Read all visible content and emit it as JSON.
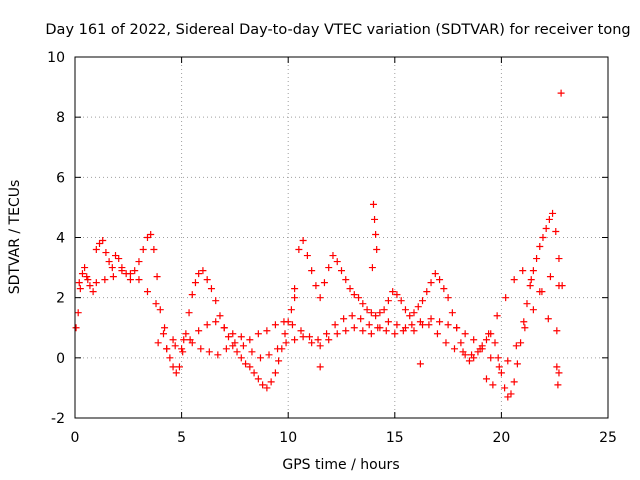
{
  "chart_data": {
    "type": "scatter",
    "title": "Day 161 of 2022, Sidereal Day-to-day VTEC variation (SDTVAR) for receiver tong",
    "xlabel": "GPS time / hours",
    "ylabel": "SDTVAR / TECUs",
    "xlim": [
      0,
      25
    ],
    "ylim": [
      -2,
      10
    ],
    "xticks": [
      "0",
      "5",
      "10",
      "15",
      "20",
      "25"
    ],
    "yticks": [
      "-2",
      "0",
      "2",
      "4",
      "6",
      "8",
      "10"
    ],
    "grid": true,
    "marker": "+",
    "series": [
      {
        "name": "SDTVAR",
        "color": "#ff0000",
        "x": [
          0.05,
          0.15,
          0.25,
          0.35,
          0.45,
          0.55,
          0.7,
          0.85,
          1.0,
          1.15,
          1.3,
          1.45,
          1.6,
          1.75,
          1.9,
          2.05,
          2.2,
          2.4,
          2.6,
          2.8,
          3.0,
          3.2,
          3.4,
          3.55,
          3.7,
          3.85,
          4.0,
          4.15,
          4.3,
          4.45,
          4.6,
          4.75,
          4.9,
          5.05,
          5.2,
          5.35,
          5.5,
          5.65,
          5.8,
          6.0,
          6.2,
          6.4,
          6.6,
          6.8,
          7.0,
          7.2,
          7.4,
          7.6,
          7.8,
          8.0,
          8.2,
          8.4,
          8.6,
          8.8,
          9.0,
          9.2,
          9.4,
          9.55,
          9.7,
          9.85,
          10.0,
          10.15,
          10.3,
          10.5,
          10.7,
          10.9,
          11.1,
          11.3,
          11.5,
          11.7,
          11.9,
          12.1,
          12.3,
          12.5,
          12.7,
          12.9,
          13.1,
          13.3,
          13.5,
          13.7,
          13.9,
          14.1,
          14.3,
          14.5,
          14.7,
          14.9,
          15.1,
          15.3,
          15.5,
          15.7,
          15.9,
          16.1,
          16.3,
          16.5,
          16.7,
          16.9,
          17.1,
          17.3,
          17.5,
          17.7,
          17.9,
          18.1,
          18.3,
          18.5,
          18.7,
          18.9,
          19.1,
          19.3,
          19.5,
          19.7,
          19.85,
          20.0,
          20.15,
          20.3,
          20.45,
          20.6,
          20.75,
          20.9,
          21.05,
          21.2,
          21.35,
          21.5,
          21.65,
          21.8,
          21.95,
          22.1,
          22.25,
          22.4,
          22.55,
          22.7,
          22.85,
          0.2,
          0.6,
          1.0,
          1.4,
          1.8,
          2.2,
          2.6,
          3.0,
          3.4,
          3.8,
          4.2,
          4.6,
          5.0,
          5.4,
          5.8,
          6.2,
          6.6,
          7.0,
          7.4,
          7.8,
          8.2,
          8.6,
          9.0,
          9.4,
          9.8,
          10.2,
          10.6,
          11.0,
          11.4,
          11.8,
          12.2,
          12.6,
          13.0,
          13.4,
          13.8,
          14.2,
          14.6,
          15.0,
          15.4,
          15.8,
          16.2,
          16.6,
          17.0,
          17.4,
          17.8,
          18.2,
          18.6,
          19.0,
          19.4,
          19.8,
          20.2,
          20.6,
          21.0,
          21.4,
          21.8,
          22.2,
          22.6,
          3.9,
          4.3,
          4.7,
          5.1,
          5.5,
          5.9,
          6.3,
          6.7,
          7.1,
          7.5,
          7.9,
          8.3,
          8.7,
          9.1,
          9.5,
          9.9,
          10.3,
          10.7,
          11.1,
          11.5,
          11.9,
          12.3,
          12.7,
          13.1,
          13.5,
          13.9,
          14.3,
          14.7,
          15.1,
          15.5,
          15.9,
          16.3,
          16.7,
          17.1,
          17.5,
          17.9,
          18.3,
          18.7,
          19.1,
          19.5,
          19.9,
          20.3,
          20.7,
          21.1,
          21.5,
          21.9,
          22.3,
          22.7,
          14.0,
          14.05,
          14.1,
          14.15,
          13.95,
          22.8,
          22.6,
          22.65,
          22.7,
          19.3,
          19.6,
          16.2,
          11.5,
          10.3
        ],
        "y": [
          1.0,
          1.5,
          2.3,
          2.8,
          3.0,
          2.7,
          2.4,
          2.2,
          3.6,
          3.8,
          3.9,
          3.5,
          3.2,
          3.0,
          3.4,
          3.3,
          3.0,
          2.8,
          2.6,
          2.9,
          3.2,
          3.6,
          4.0,
          4.1,
          3.6,
          2.7,
          1.6,
          0.8,
          0.3,
          0.0,
          -0.3,
          -0.5,
          -0.3,
          0.2,
          0.8,
          1.5,
          2.1,
          2.5,
          2.8,
          2.9,
          2.6,
          2.3,
          1.9,
          1.4,
          1.0,
          0.7,
          0.4,
          0.2,
          0.0,
          -0.2,
          -0.3,
          -0.5,
          -0.7,
          -0.9,
          -1.0,
          -0.8,
          -0.5,
          -0.1,
          0.3,
          0.8,
          1.2,
          1.6,
          2.0,
          3.6,
          3.9,
          3.4,
          2.9,
          2.4,
          2.0,
          2.5,
          3.0,
          3.4,
          3.2,
          2.9,
          2.6,
          2.3,
          2.1,
          2.0,
          1.8,
          1.6,
          1.5,
          1.4,
          1.5,
          1.6,
          1.9,
          2.2,
          2.1,
          1.9,
          1.6,
          1.4,
          1.5,
          1.7,
          1.9,
          2.2,
          2.5,
          2.8,
          2.6,
          2.3,
          2.0,
          1.5,
          1.0,
          0.5,
          0.1,
          -0.1,
          0.0,
          0.2,
          0.4,
          0.6,
          0.8,
          0.5,
          0.0,
          -0.5,
          -1.0,
          -1.3,
          -1.2,
          -0.8,
          -0.2,
          0.5,
          1.2,
          1.8,
          2.4,
          2.9,
          3.3,
          3.7,
          4.0,
          4.3,
          4.6,
          4.8,
          4.2,
          3.3,
          2.4,
          2.5,
          2.6,
          2.5,
          2.6,
          2.7,
          2.9,
          2.8,
          2.6,
          2.2,
          1.8,
          1.0,
          0.6,
          0.3,
          0.6,
          0.9,
          1.1,
          1.2,
          1.0,
          0.8,
          0.7,
          0.6,
          0.8,
          0.9,
          1.1,
          1.2,
          1.1,
          0.9,
          0.7,
          0.6,
          0.8,
          1.1,
          1.3,
          1.4,
          1.3,
          1.1,
          1.0,
          0.9,
          0.8,
          0.9,
          1.1,
          1.2,
          1.1,
          0.8,
          0.5,
          0.3,
          0.2,
          0.1,
          0.3,
          0.8,
          1.4,
          2.0,
          2.6,
          2.9,
          2.6,
          2.2,
          1.3,
          0.9,
          0.5,
          0.3,
          0.4,
          0.6,
          0.5,
          0.3,
          0.2,
          0.1,
          0.3,
          0.5,
          0.4,
          0.2,
          0.0,
          0.1,
          0.3,
          0.5,
          0.6,
          0.7,
          0.5,
          0.4,
          0.6,
          0.8,
          0.9,
          1.0,
          0.9,
          0.8,
          1.0,
          1.2,
          1.1,
          1.0,
          0.9,
          1.1,
          1.3,
          1.2,
          1.1,
          1.0,
          0.8,
          0.6,
          0.3,
          0.0,
          -0.3,
          -0.1,
          0.4,
          1.0,
          1.6,
          2.2,
          2.7,
          2.4,
          5.1,
          4.6,
          4.1,
          3.6,
          3.0,
          8.8,
          -0.3,
          -0.9,
          -0.5,
          -0.7,
          -0.9,
          -0.2,
          -0.3,
          2.3
        ]
      }
    ]
  }
}
